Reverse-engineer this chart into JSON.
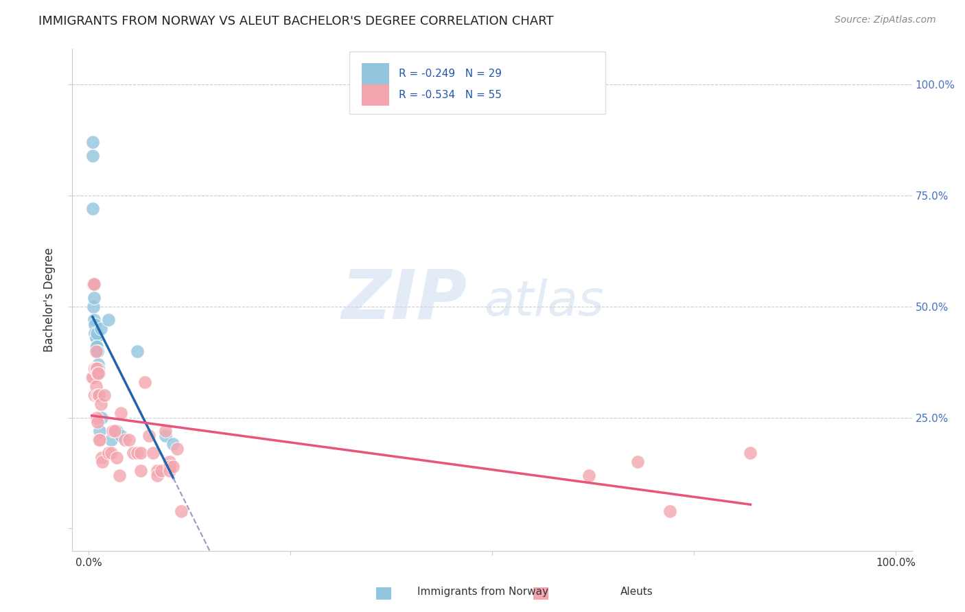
{
  "title": "IMMIGRANTS FROM NORWAY VS ALEUT BACHELOR'S DEGREE CORRELATION CHART",
  "source": "Source: ZipAtlas.com",
  "ylabel": "Bachelor's Degree",
  "right_yticks": [
    "100.0%",
    "75.0%",
    "50.0%",
    "25.0%"
  ],
  "right_ytick_vals": [
    100.0,
    75.0,
    50.0,
    25.0
  ],
  "watermark_zip": "ZIP",
  "watermark_atlas": "atlas",
  "legend_norway": "R = -0.249   N = 29",
  "legend_aleut": "R = -0.534   N = 55",
  "legend_label_norway": "Immigrants from Norway",
  "legend_label_aleut": "Aleuts",
  "norway_color": "#92c5de",
  "aleut_color": "#f4a6b0",
  "norway_line_color": "#2166ac",
  "aleut_line_color": "#e8547a",
  "dashed_line_color": "#9999bb",
  "norway_x": [
    0.5,
    0.5,
    0.5,
    0.6,
    0.6,
    0.7,
    0.7,
    0.8,
    0.8,
    0.9,
    0.9,
    0.9,
    1.0,
    1.0,
    1.1,
    1.1,
    1.2,
    1.2,
    1.3,
    1.4,
    1.5,
    1.6,
    2.5,
    2.8,
    3.5,
    4.0,
    6.0,
    9.5,
    10.5
  ],
  "norway_y": [
    87,
    84,
    72,
    55,
    50,
    52,
    47,
    46,
    44,
    43,
    43,
    41,
    44,
    41,
    40,
    40,
    37,
    36,
    35,
    22,
    45,
    25,
    47,
    20,
    22,
    21,
    40,
    21,
    19
  ],
  "aleut_x": [
    0.4,
    0.5,
    0.6,
    0.7,
    0.7,
    0.7,
    0.8,
    0.8,
    0.9,
    0.9,
    0.9,
    1.0,
    1.0,
    1.0,
    1.1,
    1.1,
    1.2,
    1.2,
    1.3,
    1.3,
    1.4,
    1.5,
    1.6,
    1.7,
    2.0,
    2.5,
    2.8,
    3.0,
    3.2,
    3.5,
    3.8,
    4.0,
    4.5,
    5.0,
    5.5,
    6.0,
    6.5,
    6.5,
    7.0,
    7.5,
    8.0,
    8.5,
    8.5,
    9.0,
    9.5,
    10.0,
    10.0,
    10.0,
    10.5,
    11.0,
    11.5,
    62.0,
    68.0,
    72.0,
    82.0
  ],
  "aleut_y": [
    34,
    34,
    55,
    55,
    36,
    30,
    36,
    30,
    40,
    36,
    32,
    36,
    30,
    25,
    35,
    24,
    35,
    30,
    30,
    20,
    20,
    28,
    16,
    15,
    30,
    17,
    17,
    22,
    22,
    16,
    12,
    26,
    20,
    20,
    17,
    17,
    17,
    13,
    33,
    21,
    17,
    13,
    12,
    13,
    22,
    15,
    14,
    13,
    14,
    18,
    4,
    12,
    15,
    4,
    17
  ],
  "xlim": [
    -2.0,
    102.0
  ],
  "ylim": [
    -5.0,
    108.0
  ],
  "background_color": "#ffffff",
  "plot_bg": "#ffffff",
  "grid_color": "#cccccc"
}
